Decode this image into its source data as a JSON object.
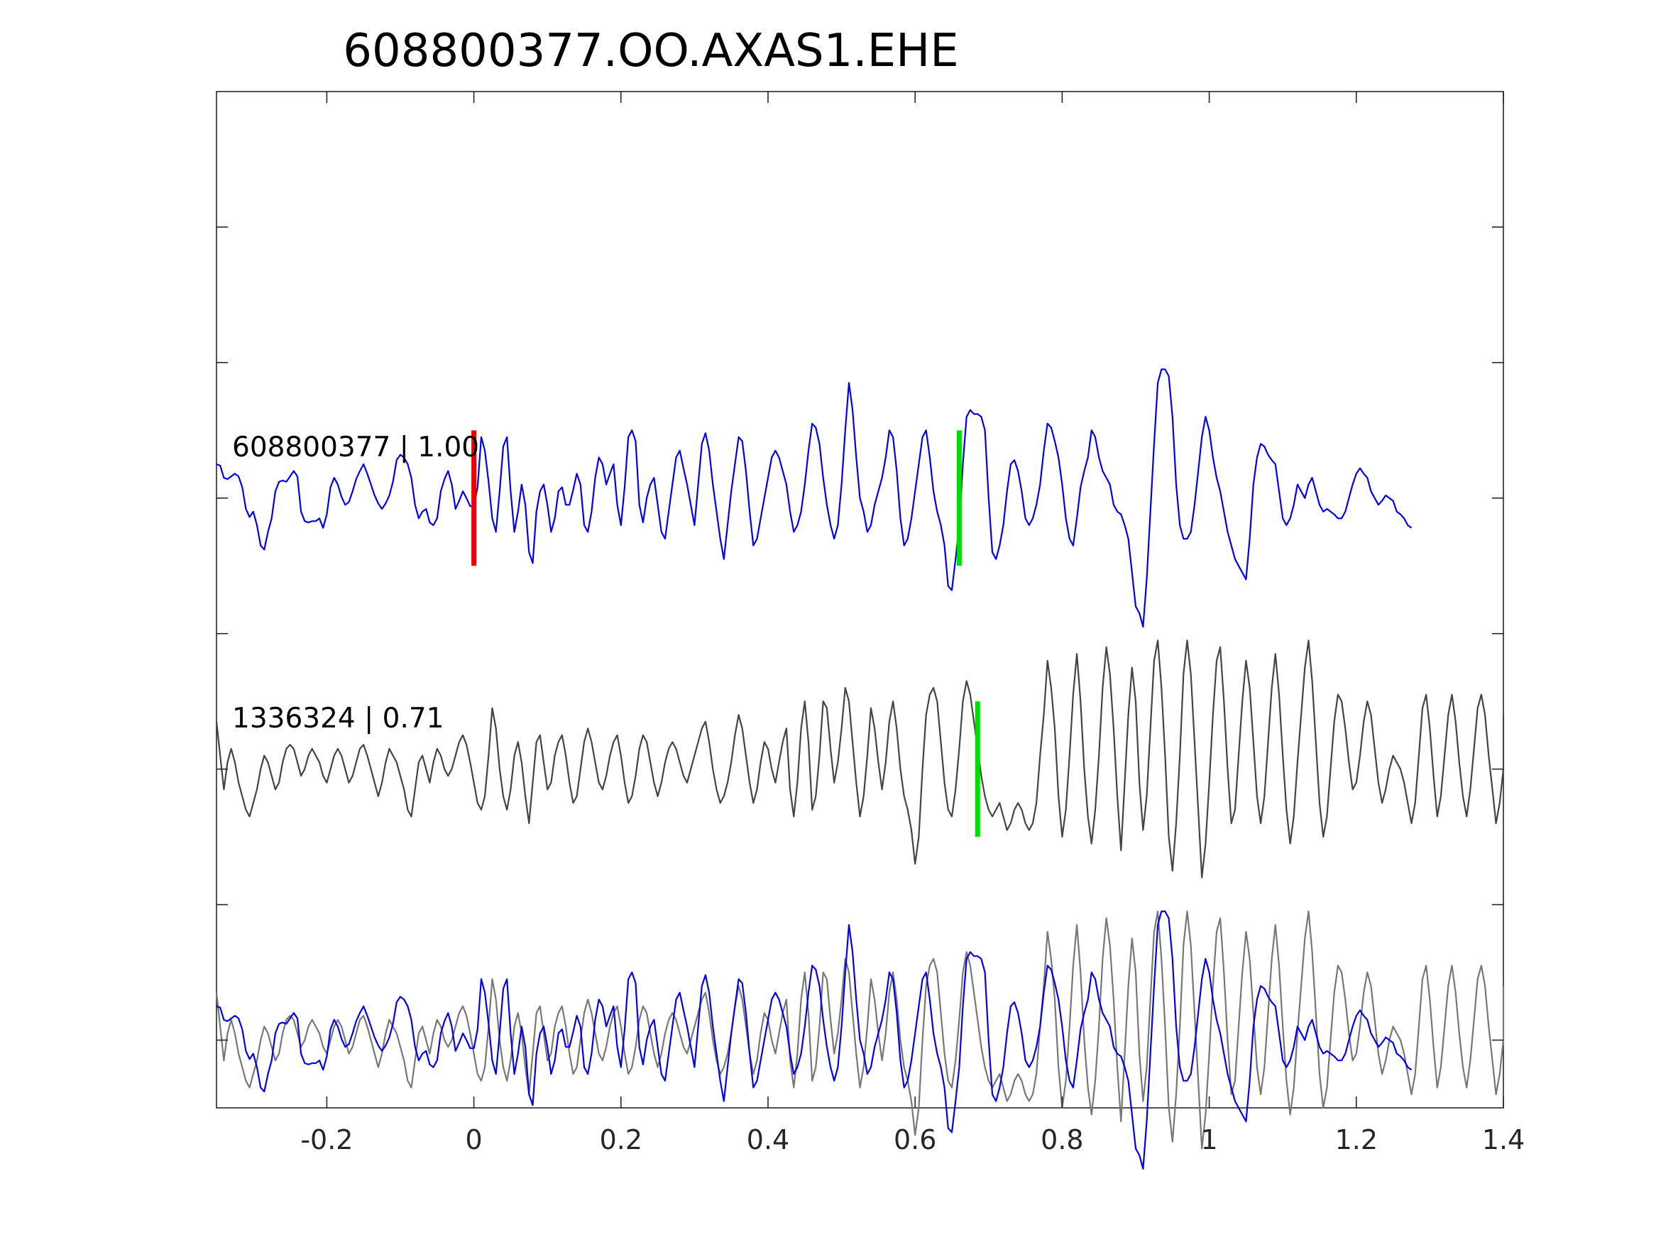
{
  "chart_data": {
    "type": "line",
    "title": "608800377.OO.AXAS1.EHE",
    "xlabel": "",
    "ylabel": "",
    "xlim": [
      -0.35,
      1.4
    ],
    "ylim": [
      -4.5,
      3.0
    ],
    "x_ticks": [
      -0.2,
      0,
      0.2,
      0.4,
      0.6,
      0.8,
      1.0,
      1.2,
      1.4
    ],
    "x_tick_labels": [
      "-0.2",
      "0",
      "0.2",
      "0.4",
      "0.6",
      "0.8",
      "1",
      "1.2",
      "1.4"
    ],
    "y_ticks": [
      2,
      1,
      0,
      -1,
      -2,
      -3,
      -4
    ],
    "grid": false,
    "traces": [
      {
        "label": "608800377 | 1.00",
        "offset": 0,
        "color": "#0000ee",
        "series_ref": "template"
      },
      {
        "label": "1336324 | 0.71",
        "offset": -2,
        "color": "#444444",
        "series_ref": "match"
      }
    ],
    "overlay": {
      "offset": -4,
      "colors": [
        "#777777",
        "#0000ee"
      ]
    },
    "picks": [
      {
        "x": 0.0,
        "y0": -0.5,
        "y1": 0.5,
        "color": "#ee0000"
      },
      {
        "x": 0.66,
        "y0": -0.5,
        "y1": 0.5,
        "color": "#00dd00"
      },
      {
        "x": 0.685,
        "y0": -2.5,
        "y1": -1.5,
        "color": "#00dd00"
      }
    ],
    "series": [
      {
        "id": "template",
        "x_start": -0.35,
        "x_step": 0.005,
        "values": [
          0.25,
          0.24,
          0.15,
          0.14,
          0.16,
          0.18,
          0.16,
          0.08,
          -0.08,
          -0.14,
          -0.1,
          -0.2,
          -0.35,
          -0.38,
          -0.25,
          -0.15,
          0.05,
          0.12,
          0.13,
          0.12,
          0.16,
          0.2,
          0.16,
          -0.1,
          -0.17,
          -0.18,
          -0.17,
          -0.17,
          -0.15,
          -0.22,
          -0.12,
          0.08,
          0.15,
          0.1,
          0.01,
          -0.05,
          -0.03,
          0.05,
          0.14,
          0.2,
          0.25,
          0.18,
          0.1,
          0.02,
          -0.04,
          -0.08,
          -0.04,
          0.02,
          0.12,
          0.28,
          0.32,
          0.3,
          0.25,
          0.15,
          -0.05,
          -0.15,
          -0.1,
          -0.08,
          -0.18,
          -0.2,
          -0.15,
          0.05,
          0.14,
          0.2,
          0.1,
          -0.08,
          -0.02,
          0.05,
          0.0,
          -0.06,
          -0.06,
          0.08,
          0.45,
          0.35,
          0.12,
          -0.15,
          -0.25,
          0.05,
          0.38,
          0.45,
          0.05,
          -0.25,
          -0.1,
          0.1,
          -0.05,
          -0.4,
          -0.48,
          -0.1,
          0.05,
          0.1,
          -0.05,
          -0.25,
          -0.15,
          0.05,
          0.08,
          -0.05,
          -0.05,
          0.06,
          0.18,
          0.1,
          -0.2,
          -0.25,
          -0.1,
          0.15,
          0.3,
          0.25,
          0.1,
          0.18,
          0.25,
          -0.05,
          -0.2,
          0.08,
          0.45,
          0.5,
          0.42,
          -0.05,
          -0.18,
          0.0,
          0.1,
          0.15,
          -0.05,
          -0.25,
          -0.3,
          -0.1,
          0.1,
          0.3,
          0.35,
          0.22,
          0.1,
          -0.05,
          -0.2,
          0.1,
          0.4,
          0.48,
          0.35,
          0.1,
          -0.1,
          -0.3,
          -0.45,
          -0.2,
          0.05,
          0.25,
          0.45,
          0.42,
          0.2,
          -0.1,
          -0.35,
          -0.3,
          -0.15,
          0.0,
          0.15,
          0.3,
          0.35,
          0.3,
          0.2,
          0.1,
          -0.1,
          -0.25,
          -0.2,
          -0.1,
          0.1,
          0.35,
          0.55,
          0.52,
          0.4,
          0.15,
          -0.05,
          -0.2,
          -0.3,
          -0.2,
          0.1,
          0.5,
          0.85,
          0.65,
          0.3,
          0.0,
          -0.1,
          -0.25,
          -0.2,
          -0.05,
          0.05,
          0.15,
          0.3,
          0.5,
          0.45,
          0.2,
          -0.15,
          -0.35,
          -0.3,
          -0.15,
          0.05,
          0.25,
          0.45,
          0.5,
          0.3,
          0.05,
          -0.1,
          -0.2,
          -0.35,
          -0.65,
          -0.68,
          -0.45,
          -0.2,
          0.25,
          0.6,
          0.65,
          0.62,
          0.62,
          0.6,
          0.5,
          0.0,
          -0.4,
          -0.45,
          -0.35,
          -0.2,
          0.05,
          0.25,
          0.28,
          0.2,
          0.05,
          -0.15,
          -0.2,
          -0.15,
          -0.05,
          0.1,
          0.35,
          0.55,
          0.52,
          0.42,
          0.3,
          0.1,
          -0.15,
          -0.3,
          -0.35,
          -0.15,
          0.08,
          0.2,
          0.3,
          0.5,
          0.45,
          0.3,
          0.2,
          0.15,
          0.1,
          -0.05,
          -0.1,
          -0.12,
          -0.2,
          -0.3,
          -0.55,
          -0.8,
          -0.85,
          -0.95,
          -0.6,
          -0.1,
          0.4,
          0.85,
          0.95,
          0.95,
          0.9,
          0.6,
          0.1,
          -0.2,
          -0.3,
          -0.3,
          -0.25,
          -0.05,
          0.2,
          0.45,
          0.6,
          0.5,
          0.3,
          0.15,
          0.05,
          -0.1,
          -0.25,
          -0.35,
          -0.45,
          -0.5,
          -0.55,
          -0.6,
          -0.3,
          0.1,
          0.3,
          0.4,
          0.38,
          0.32,
          0.28,
          0.25,
          0.05,
          -0.15,
          -0.2,
          -0.15,
          -0.05,
          0.1,
          0.05,
          0.0,
          0.1,
          0.15,
          0.05,
          -0.05,
          -0.1,
          -0.08,
          -0.1,
          -0.12,
          -0.15,
          -0.15,
          -0.1,
          0.0,
          0.1,
          0.18,
          0.22,
          0.18,
          0.15,
          0.05,
          0.0,
          -0.05,
          -0.02,
          0.02,
          0.0,
          -0.02,
          -0.1,
          -0.12,
          -0.15,
          -0.2,
          -0.22
        ]
      },
      {
        "id": "match",
        "x_start": -0.35,
        "x_step": 0.005,
        "values": [
          0.35,
          0.1,
          -0.15,
          0.05,
          0.15,
          0.05,
          -0.1,
          -0.2,
          -0.3,
          -0.35,
          -0.25,
          -0.15,
          0.0,
          0.1,
          0.05,
          -0.05,
          -0.15,
          -0.1,
          0.05,
          0.15,
          0.18,
          0.15,
          0.05,
          -0.05,
          0.0,
          0.1,
          0.15,
          0.1,
          0.05,
          -0.05,
          -0.1,
          0.0,
          0.1,
          0.15,
          0.1,
          0.0,
          -0.1,
          -0.05,
          0.05,
          0.15,
          0.18,
          0.1,
          0.0,
          -0.1,
          -0.2,
          -0.1,
          0.05,
          0.15,
          0.1,
          0.05,
          -0.05,
          -0.15,
          -0.3,
          -0.35,
          -0.15,
          0.05,
          0.1,
          0.0,
          -0.1,
          0.05,
          0.15,
          0.1,
          0.0,
          -0.05,
          0.0,
          0.1,
          0.2,
          0.25,
          0.18,
          0.05,
          -0.1,
          -0.25,
          -0.3,
          -0.2,
          0.1,
          0.45,
          0.3,
          0.0,
          -0.2,
          -0.3,
          -0.15,
          0.1,
          0.2,
          0.05,
          -0.2,
          -0.4,
          -0.1,
          0.2,
          0.25,
          0.05,
          -0.15,
          -0.1,
          0.1,
          0.2,
          0.25,
          0.1,
          -0.1,
          -0.25,
          -0.2,
          0.0,
          0.2,
          0.3,
          0.2,
          0.05,
          -0.1,
          -0.15,
          -0.05,
          0.1,
          0.2,
          0.25,
          0.1,
          -0.1,
          -0.25,
          -0.2,
          -0.05,
          0.15,
          0.25,
          0.2,
          0.05,
          -0.1,
          -0.2,
          -0.1,
          0.05,
          0.15,
          0.2,
          0.15,
          0.05,
          -0.05,
          -0.1,
          0.0,
          0.1,
          0.2,
          0.3,
          0.35,
          0.2,
          0.0,
          -0.15,
          -0.25,
          -0.2,
          -0.1,
          0.05,
          0.25,
          0.4,
          0.3,
          0.1,
          -0.1,
          -0.25,
          -0.15,
          0.05,
          0.2,
          0.15,
          0.0,
          -0.1,
          0.05,
          0.2,
          0.3,
          -0.15,
          -0.35,
          -0.1,
          0.3,
          0.5,
          0.2,
          -0.3,
          -0.2,
          0.1,
          0.5,
          0.45,
          0.15,
          -0.1,
          0.05,
          0.3,
          0.6,
          0.5,
          0.2,
          -0.1,
          -0.35,
          -0.2,
          0.1,
          0.45,
          0.3,
          0.05,
          -0.15,
          0.05,
          0.35,
          0.5,
          0.3,
          0.0,
          -0.2,
          -0.3,
          -0.45,
          -0.7,
          -0.5,
          0.0,
          0.4,
          0.55,
          0.6,
          0.5,
          0.2,
          -0.1,
          -0.3,
          -0.35,
          -0.15,
          0.15,
          0.5,
          0.65,
          0.55,
          0.35,
          0.15,
          -0.05,
          -0.2,
          -0.3,
          -0.35,
          -0.3,
          -0.25,
          -0.35,
          -0.45,
          -0.4,
          -0.3,
          -0.25,
          -0.3,
          -0.4,
          -0.45,
          -0.4,
          -0.25,
          0.1,
          0.4,
          0.8,
          0.6,
          0.3,
          -0.2,
          -0.5,
          -0.3,
          0.1,
          0.55,
          0.85,
          0.5,
          0.0,
          -0.35,
          -0.55,
          -0.3,
          0.1,
          0.6,
          0.9,
          0.7,
          0.3,
          -0.2,
          -0.6,
          -0.1,
          0.4,
          0.75,
          0.5,
          -0.1,
          -0.45,
          -0.2,
          0.3,
          0.8,
          0.95,
          0.6,
          0.1,
          -0.5,
          -0.75,
          -0.4,
          0.1,
          0.7,
          0.95,
          0.7,
          0.2,
          -0.3,
          -0.8,
          -0.55,
          -0.1,
          0.4,
          0.8,
          0.9,
          0.5,
          0.0,
          -0.4,
          -0.3,
          0.1,
          0.5,
          0.8,
          0.6,
          0.2,
          -0.2,
          -0.4,
          -0.2,
          0.2,
          0.6,
          0.85,
          0.55,
          0.1,
          -0.3,
          -0.55,
          -0.35,
          0.05,
          0.4,
          0.75,
          0.95,
          0.65,
          0.2,
          -0.25,
          -0.5,
          -0.35,
          0.0,
          0.35,
          0.55,
          0.5,
          0.3,
          0.05,
          -0.15,
          -0.1,
          0.1,
          0.35,
          0.5,
          0.4,
          0.15,
          -0.1,
          -0.25,
          -0.15,
          0.0,
          0.1,
          0.05,
          0.0,
          -0.1,
          -0.25,
          -0.4,
          -0.25,
          0.1,
          0.45,
          0.55,
          0.3,
          -0.05,
          -0.35,
          -0.2,
          0.1,
          0.4,
          0.55,
          0.35,
          0.05,
          -0.2,
          -0.35,
          -0.15,
          0.15,
          0.45,
          0.55,
          0.4,
          0.1,
          -0.15,
          -0.4,
          -0.25,
          0.0,
          0.25,
          0.4
        ]
      }
    ]
  }
}
